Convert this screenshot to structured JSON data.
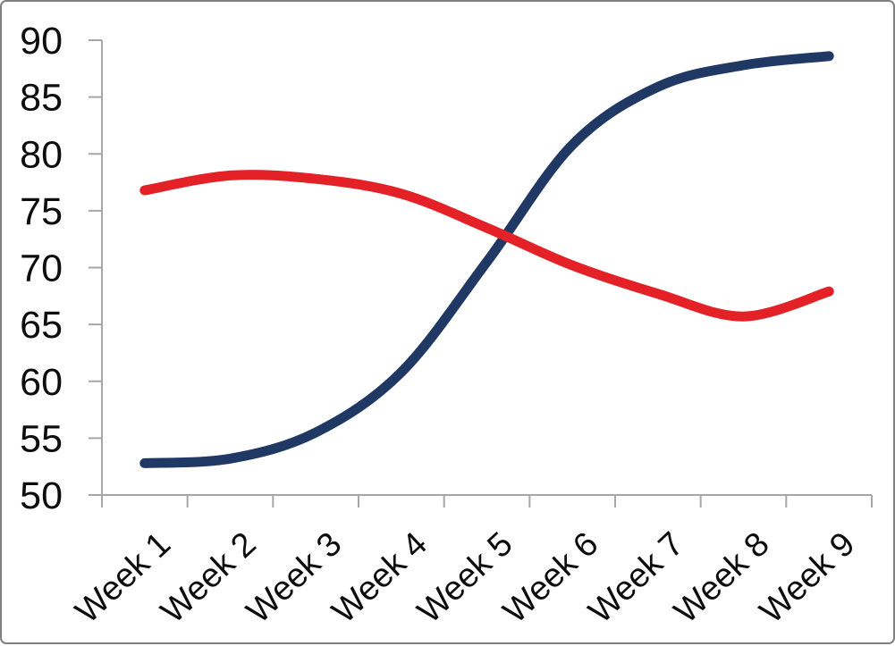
{
  "chart_data": {
    "type": "line",
    "line_style": "smooth",
    "title": "",
    "xlabel": "",
    "ylabel": "",
    "categories": [
      "Week 1",
      "Week 2",
      "Week 3",
      "Week 4",
      "Week 5",
      "Week 6",
      "Week 7",
      "Week 8",
      "Week 9"
    ],
    "series": [
      {
        "name": "series-1-navy",
        "color": "#1f3864",
        "values": [
          52.8,
          53.2,
          55.5,
          60.8,
          70.5,
          80.8,
          85.9,
          87.8,
          88.6
        ]
      },
      {
        "name": "series-2-red",
        "color": "#e32127",
        "values": [
          76.8,
          78.1,
          77.8,
          76.5,
          73.5,
          70.2,
          67.7,
          65.7,
          67.9
        ]
      }
    ],
    "ylim": [
      50,
      90
    ],
    "ytick_step": 5,
    "ytick_labels": [
      "50",
      "55",
      "60",
      "65",
      "70",
      "75",
      "80",
      "85",
      "90"
    ],
    "grid": false,
    "legend": "none",
    "axis_color": "#a6a6a6",
    "label_color": "#0d0d0d",
    "x_label_rotation_deg": -43
  }
}
